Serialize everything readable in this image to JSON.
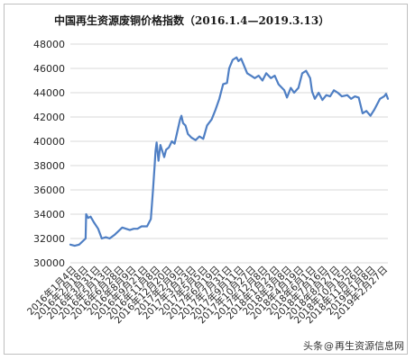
{
  "chart_data": {
    "type": "line",
    "title": "中国再生资源废铜价格指数（2016.1.4—2019.3.13）",
    "xlabel": "",
    "ylabel": "",
    "ylim": [
      30000,
      48000
    ],
    "yticks": [
      30000,
      32000,
      34000,
      36000,
      38000,
      40000,
      42000,
      44000,
      46000,
      48000
    ],
    "grid": true,
    "legend": "none",
    "line_color": "#4f7fc4",
    "x_tick_labels": [
      "2016年1月4日",
      "2016年2月18日",
      "2016年3月31日",
      "2016年5月13日",
      "2016年6月28日",
      "2016年8月9日",
      "2016年9月21日",
      "2016年11月8日",
      "2016年12月20日",
      "2017年2月9日",
      "2017年3月23日",
      "2017年5月5日",
      "2017年6月19日",
      "2017年7月31日",
      "2017年9月11日",
      "2017年10月27日",
      "2017年12月8日",
      "2018年1月22日",
      "2018年3月8日",
      "2018年4月19日",
      "2018年6月1日",
      "2018年7月16日",
      "2018年8月27日",
      "2018年10月15日",
      "2018年11月26日",
      "2019年1月8日",
      "2019年2月27日"
    ],
    "series": [
      {
        "x": [
          "2016-01-04",
          "2016-01-20",
          "2016-02-05",
          "2016-02-29",
          "2016-03-02",
          "2016-03-09",
          "2016-03-18",
          "2016-03-31",
          "2016-04-15",
          "2016-04-28",
          "2016-05-13",
          "2016-05-27",
          "2016-06-14",
          "2016-06-28",
          "2016-07-12",
          "2016-07-26",
          "2016-08-09",
          "2016-08-23",
          "2016-09-06",
          "2016-09-21",
          "2016-10-11",
          "2016-10-25",
          "2016-11-02",
          "2016-11-08",
          "2016-11-11",
          "2016-11-15",
          "2016-11-22",
          "2016-11-29",
          "2016-12-06",
          "2016-12-13",
          "2016-12-20",
          "2016-12-30",
          "2017-01-10",
          "2017-01-20",
          "2017-02-09",
          "2017-02-14",
          "2017-02-20",
          "2017-03-01",
          "2017-03-10",
          "2017-03-23",
          "2017-04-07",
          "2017-04-21",
          "2017-05-05",
          "2017-05-19",
          "2017-06-05",
          "2017-06-19",
          "2017-07-03",
          "2017-07-17",
          "2017-07-31",
          "2017-08-08",
          "2017-08-21",
          "2017-09-04",
          "2017-09-11",
          "2017-09-21",
          "2017-10-13",
          "2017-10-27",
          "2017-11-10",
          "2017-11-24",
          "2017-12-08",
          "2017-12-22",
          "2018-01-08",
          "2018-01-22",
          "2018-02-05",
          "2018-02-26",
          "2018-03-08",
          "2018-03-22",
          "2018-04-03",
          "2018-04-19",
          "2018-05-03",
          "2018-05-17",
          "2018-06-01",
          "2018-06-08",
          "2018-06-18",
          "2018-07-02",
          "2018-07-16",
          "2018-07-30",
          "2018-08-13",
          "2018-08-27",
          "2018-09-10",
          "2018-09-25",
          "2018-10-15",
          "2018-10-29",
          "2018-11-12",
          "2018-11-26",
          "2018-12-10",
          "2018-12-24",
          "2019-01-08",
          "2019-01-22",
          "2019-02-12",
          "2019-02-27",
          "2019-03-06",
          "2019-03-13"
        ],
        "y": [
          31500,
          31400,
          31500,
          32000,
          34000,
          33700,
          33800,
          33300,
          32800,
          32000,
          32100,
          32000,
          32300,
          32600,
          32900,
          32800,
          32700,
          32800,
          32800,
          33000,
          33000,
          33600,
          36000,
          38000,
          39200,
          39900,
          38400,
          39700,
          39200,
          38700,
          39300,
          39500,
          40000,
          39800,
          41800,
          42100,
          41500,
          41300,
          40600,
          40300,
          40100,
          40400,
          40200,
          41300,
          41800,
          42600,
          43500,
          44700,
          44800,
          46000,
          46700,
          46900,
          46600,
          46800,
          45600,
          45400,
          45200,
          45400,
          45000,
          45600,
          45200,
          45400,
          44700,
          44200,
          43600,
          44400,
          44000,
          44400,
          45600,
          45800,
          45200,
          44100,
          43500,
          44000,
          43400,
          43800,
          43700,
          44200,
          44000,
          43700,
          43800,
          43500,
          43700,
          43600,
          42300,
          42500,
          42100,
          42600,
          43500,
          43700,
          43900,
          43500
        ]
      }
    ]
  },
  "watermark": {
    "prefix": "头条",
    "at": "@",
    "account": "再生资源信息网"
  }
}
